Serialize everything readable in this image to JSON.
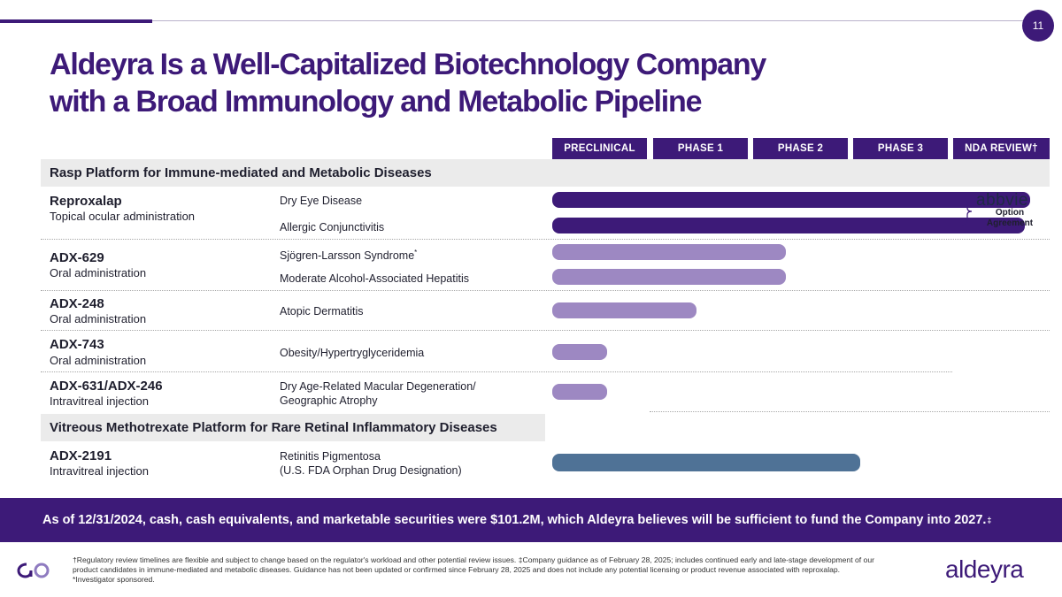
{
  "page": {
    "number": "11"
  },
  "title": {
    "line1": "Aldeyra Is a Well-Capitalized Biotechnology Company",
    "line2": "with a Broad Immunology and Metabolic Pipeline"
  },
  "phases": [
    "PRECLINICAL",
    "PHASE 1",
    "PHASE 2",
    "PHASE 3",
    "NDA REVIEW†"
  ],
  "sections": {
    "rasp": "Rasp Platform for Immune-mediated and Metabolic Diseases",
    "methotrexate": "Vitreous Methotrexate Platform for Rare Retinal Inflammatory Diseases"
  },
  "programs": [
    {
      "name": "Reproxalap",
      "route": "Topical ocular administration",
      "indications": [
        {
          "label": "Dry Eye Disease",
          "progress": 0.96
        },
        {
          "label": "Allergic Conjunctivitis",
          "progress": 0.95
        }
      ]
    },
    {
      "name": "ADX-629",
      "route": "Oral administration",
      "indications": [
        {
          "label": "Sjögren-Larsson Syndrome",
          "note": "*",
          "progress": 0.47
        },
        {
          "label": "Moderate Alcohol-Associated Hepatitis",
          "progress": 0.47
        }
      ]
    },
    {
      "name": "ADX-248",
      "route": "Oral administration",
      "indications": [
        {
          "label": "Atopic Dermatitis",
          "progress": 0.29
        }
      ]
    },
    {
      "name": "ADX-743",
      "route": "Oral administration",
      "indications": [
        {
          "label": "Obesity/Hypertryglyceridemia",
          "progress": 0.11
        }
      ]
    },
    {
      "name": "ADX-631/ADX-246",
      "route": "Intravitreal injection",
      "indications": [
        {
          "label_line1": "Dry Age-Related Macular Degeneration/",
          "label_line2": "Geographic Atrophy",
          "progress": 0.11
        }
      ]
    },
    {
      "name": "ADX-2191",
      "route": "Intravitreal injection",
      "indications": [
        {
          "label_line1": "Retinitis Pigmentosa",
          "label_line2": "(U.S. FDA Orphan Drug Designation)",
          "progress": 0.62
        }
      ]
    }
  ],
  "partner": {
    "name": "abbvie",
    "note_line1": "Option",
    "note_line2": "Agreement"
  },
  "banner": {
    "text": "As of 12/31/2024, cash, cash equivalents, and marketable securities were $101.2M, which Aldeyra believes will be sufficient to fund the Company into 2027.",
    "mark": "‡"
  },
  "footnote": "†Regulatory review timelines are flexible and subject to change based on the regulator's workload and other potential review issues. ‡Company guidance as of  February 28, 2025; includes continued early and late-stage development of our product candidates in immune-mediated and metabolic diseases. Guidance has not been updated or confirmed since February 28, 2025 and does not include any potential licensing or product revenue associated with reproxalap. *Investigator sponsored.",
  "brand": {
    "name": "aldeyra"
  },
  "colors": {
    "primary": "#3d1a78",
    "light_bar": "#9d88c2",
    "blue_bar": "#4f7296",
    "section_bg": "#ebebeb"
  }
}
